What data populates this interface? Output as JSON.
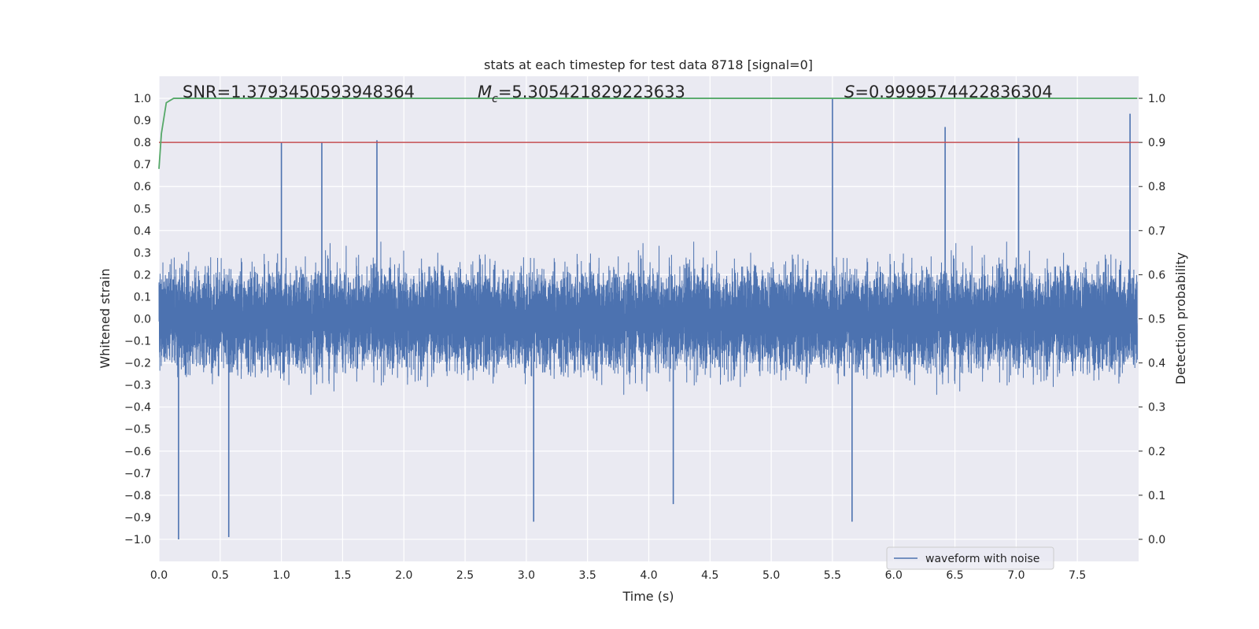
{
  "chart_data": {
    "type": "line",
    "title": "stats at each timestep for test data 8718 [signal=0]",
    "xlabel": "Time (s)",
    "ylabel": "Whitened strain",
    "y2label": "Detection probability",
    "xlim": [
      0.0,
      8.0
    ],
    "ylim": [
      -1.1,
      1.1
    ],
    "y2lim": [
      -0.05,
      1.05
    ],
    "xticks": [
      "0.0",
      "0.5",
      "1.0",
      "1.5",
      "2.0",
      "2.5",
      "3.0",
      "3.5",
      "4.0",
      "4.5",
      "5.0",
      "5.5",
      "6.0",
      "6.5",
      "7.0",
      "7.5"
    ],
    "yticks": [
      "1.0",
      "0.9",
      "0.8",
      "0.7",
      "0.6",
      "0.5",
      "0.4",
      "0.3",
      "0.2",
      "0.1",
      "0.0",
      "−0.1",
      "−0.2",
      "−0.3",
      "−0.4",
      "−0.5",
      "−0.6",
      "−0.7",
      "−0.8",
      "−0.9",
      "−1.0"
    ],
    "y2ticks": [
      "1.0",
      "0.9",
      "0.8",
      "0.7",
      "0.6",
      "0.5",
      "0.4",
      "0.3",
      "0.2",
      "0.1",
      "0.0"
    ],
    "grid": true,
    "legend_location": "lower center-right",
    "colors": {
      "waveform": "#4c72b0",
      "probability": "#55a868",
      "threshold": "#c44e52",
      "background": "#eaeaf2",
      "grid": "#ffffff"
    },
    "annotations": {
      "snr": "SNR=1.3793450593948364",
      "mc_symbol": "M",
      "mc_sub": "c",
      "mc_value": "=5.305421829223633",
      "s_symbol": "S",
      "s_value": "=0.9999574422836304"
    },
    "series": [
      {
        "name": "waveform with noise",
        "kind": "noise",
        "sample_rate_hz": 2048,
        "duration_s": 7.99,
        "typical_envelope": 0.4,
        "peaks": [
          {
            "t": 0.16,
            "y": -1.0
          },
          {
            "t": 0.57,
            "y": -0.99
          },
          {
            "t": 1.0,
            "y": 0.8
          },
          {
            "t": 1.33,
            "y": 0.8
          },
          {
            "t": 1.78,
            "y": 0.81
          },
          {
            "t": 3.06,
            "y": -0.92
          },
          {
            "t": 4.2,
            "y": -0.84
          },
          {
            "t": 5.5,
            "y": 1.0
          },
          {
            "t": 5.66,
            "y": -0.92
          },
          {
            "t": 6.42,
            "y": 0.87
          },
          {
            "t": 7.02,
            "y": 0.82
          },
          {
            "t": 7.93,
            "y": 0.93
          }
        ]
      },
      {
        "name": "",
        "kind": "probability",
        "x": [
          0.0,
          0.02,
          0.06,
          0.12,
          7.99
        ],
        "y": [
          0.84,
          0.92,
          0.99,
          1.0,
          1.0
        ]
      },
      {
        "name": "",
        "kind": "threshold",
        "y": 0.9
      }
    ]
  }
}
